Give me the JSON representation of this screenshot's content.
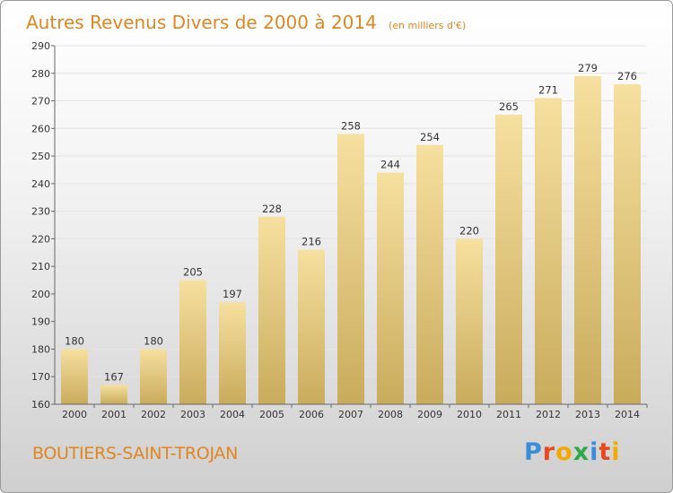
{
  "chart_data": {
    "type": "bar",
    "title": "Autres Revenus Divers de 2000 à 2014",
    "subtitle": "(en milliers d'€)",
    "categories": [
      "2000",
      "2001",
      "2002",
      "2003",
      "2004",
      "2005",
      "2006",
      "2007",
      "2008",
      "2009",
      "2010",
      "2011",
      "2012",
      "2013",
      "2014"
    ],
    "values": [
      180,
      167,
      180,
      205,
      197,
      228,
      216,
      258,
      244,
      254,
      220,
      265,
      271,
      279,
      276
    ],
    "ylim": [
      160,
      290
    ],
    "yticks": [
      160,
      170,
      180,
      190,
      200,
      210,
      220,
      230,
      240,
      250,
      260,
      270,
      280,
      290
    ],
    "grid": true,
    "bar_color": "#e8cf85",
    "title_color": "#e0861f"
  },
  "footer": {
    "commune": "BOUTIERS-SAINT-TROJAN",
    "logo_letters": [
      {
        "ch": "P",
        "color": "#3a8ed8"
      },
      {
        "ch": "r",
        "color": "#e8481a"
      },
      {
        "ch": "o",
        "color": "#f2a900"
      },
      {
        "ch": "x",
        "color": "#2ea84a"
      },
      {
        "ch": "i",
        "color": "#3a8ed8"
      },
      {
        "ch": "t",
        "color": "#e8481a"
      },
      {
        "ch": "i",
        "color": "#f2a900"
      }
    ]
  }
}
